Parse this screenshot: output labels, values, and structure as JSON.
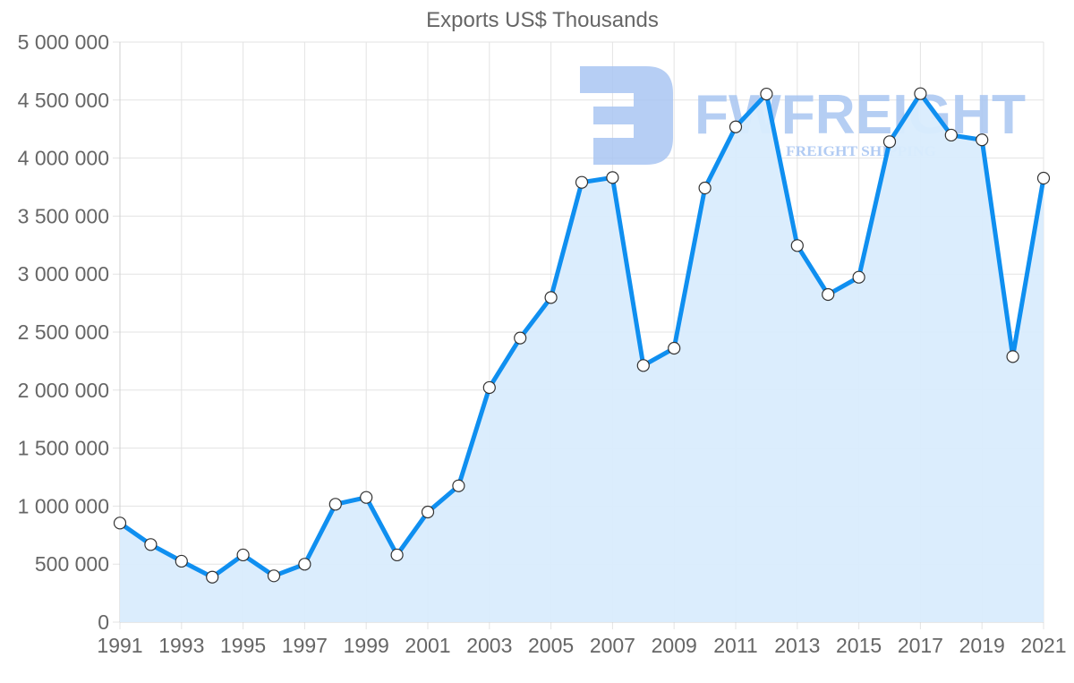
{
  "chart_data": {
    "type": "line",
    "title": "Exports US$ Thousands",
    "xlabel": "",
    "ylabel": "",
    "ylim": [
      0,
      5000000
    ],
    "y_ticks": [
      0,
      500000,
      1000000,
      1500000,
      2000000,
      2500000,
      3000000,
      3500000,
      4000000,
      4500000,
      5000000
    ],
    "y_tick_labels": [
      "0",
      "500 000",
      "1 000 000",
      "1 500 000",
      "2 000 000",
      "2 500 000",
      "3 000 000",
      "3 500 000",
      "4 000 000",
      "4 500 000",
      "5 000 000"
    ],
    "x_tick_labels": [
      "1991",
      "1993",
      "1995",
      "1997",
      "1999",
      "2001",
      "2003",
      "2005",
      "2007",
      "2009",
      "2011",
      "2013",
      "2015",
      "2017",
      "2019",
      "2021"
    ],
    "grid": true,
    "legend": null,
    "fill": true,
    "categories": [
      "1991",
      "1992",
      "1993",
      "1994",
      "1995",
      "1996",
      "1997",
      "1998",
      "1999",
      "2000",
      "2001",
      "2002",
      "2003",
      "2004",
      "2005",
      "2006",
      "2007",
      "2008",
      "2009",
      "2010",
      "2011",
      "2012",
      "2013",
      "2014",
      "2015",
      "2016",
      "2017",
      "2018",
      "2019",
      "2020",
      "2021"
    ],
    "series": [
      {
        "name": "Exports US$ Thousands",
        "values": [
          854000,
          669000,
          525000,
          388000,
          579000,
          399000,
          499000,
          1016000,
          1075000,
          579000,
          949000,
          1175000,
          2022000,
          2449000,
          2798000,
          3791000,
          3832000,
          2212000,
          2361000,
          3742000,
          4269000,
          4552000,
          3246000,
          2824000,
          2973000,
          4141000,
          4555000,
          4198000,
          4157000,
          2289000,
          3827000
        ]
      }
    ]
  },
  "colors": {
    "line": "#0f8ff0",
    "fill": "#d9ecfd",
    "grid": "#e3e3e3",
    "text": "#666666",
    "point_fill": "#ffffff",
    "point_stroke": "#333333",
    "watermark": "#a9c6f2"
  },
  "watermark": {
    "brand": "FWFREIGHT",
    "tagline": "FREIGHT SHIPPING"
  }
}
